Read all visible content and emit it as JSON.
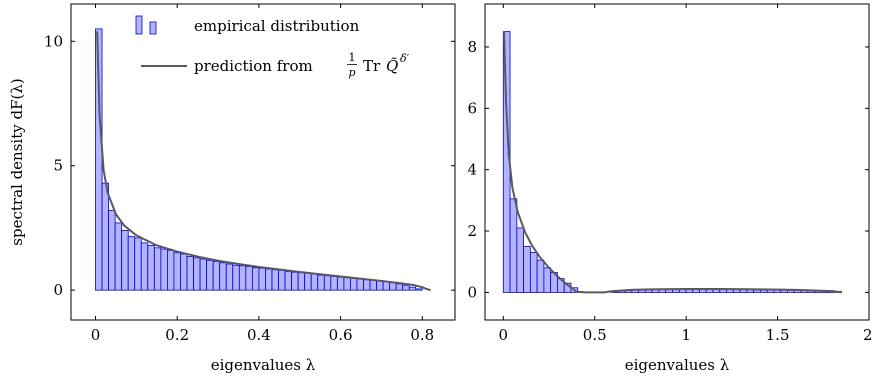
{
  "chart_data": [
    {
      "type": "bar",
      "xlabel": "eigenvalues λ",
      "ylabel": "spectral density dF(λ)",
      "xlim": [
        -0.06,
        0.88
      ],
      "ylim": [
        -1.2,
        11.5
      ],
      "xticks": [
        0,
        0.2,
        0.4,
        0.6,
        0.8
      ],
      "xtick_labels": [
        "0",
        "0.2",
        "0.4",
        "0.6",
        "0.8"
      ],
      "yticks": [
        0,
        5,
        10
      ],
      "ytick_labels": [
        "0",
        "5",
        "10"
      ],
      "legend": {
        "position": "top-right",
        "entries": [
          {
            "label": "empirical distribution",
            "kind": "bar"
          },
          {
            "label_main": "prediction from",
            "label_frac_num": "1",
            "label_frac_den": "p",
            "label_op": "Tr",
            "label_sym": "Q̃",
            "label_sup": "δ′",
            "kind": "line"
          }
        ]
      },
      "bin_width": 0.016,
      "bins_x": [
        0.008,
        0.024,
        0.04,
        0.056,
        0.072,
        0.088,
        0.104,
        0.12,
        0.136,
        0.152,
        0.168,
        0.184,
        0.2,
        0.216,
        0.232,
        0.248,
        0.264,
        0.28,
        0.296,
        0.312,
        0.328,
        0.344,
        0.36,
        0.376,
        0.392,
        0.408,
        0.424,
        0.44,
        0.456,
        0.472,
        0.488,
        0.504,
        0.52,
        0.536,
        0.552,
        0.568,
        0.584,
        0.6,
        0.616,
        0.632,
        0.648,
        0.664,
        0.68,
        0.696,
        0.712,
        0.728,
        0.744,
        0.76,
        0.776,
        0.792
      ],
      "bins_y": [
        10.5,
        4.3,
        3.2,
        2.7,
        2.4,
        2.15,
        2.1,
        1.9,
        1.8,
        1.7,
        1.65,
        1.6,
        1.5,
        1.45,
        1.35,
        1.3,
        1.25,
        1.2,
        1.15,
        1.1,
        1.05,
        1.0,
        0.98,
        0.95,
        0.9,
        0.88,
        0.85,
        0.82,
        0.8,
        0.75,
        0.72,
        0.7,
        0.68,
        0.65,
        0.6,
        0.58,
        0.55,
        0.52,
        0.5,
        0.48,
        0.45,
        0.42,
        0.4,
        0.38,
        0.35,
        0.3,
        0.25,
        0.2,
        0.12,
        0.05
      ],
      "series": [
        {
          "name": "prediction",
          "x": [
            0.004,
            0.01,
            0.02,
            0.03,
            0.05,
            0.07,
            0.1,
            0.15,
            0.2,
            0.25,
            0.3,
            0.35,
            0.4,
            0.45,
            0.5,
            0.55,
            0.6,
            0.65,
            0.7,
            0.75,
            0.78,
            0.8,
            0.81,
            0.82
          ],
          "y": [
            10.4,
            7.0,
            4.8,
            3.9,
            3.05,
            2.6,
            2.2,
            1.8,
            1.55,
            1.35,
            1.18,
            1.05,
            0.93,
            0.83,
            0.73,
            0.64,
            0.55,
            0.46,
            0.37,
            0.27,
            0.2,
            0.12,
            0.05,
            0.0
          ]
        }
      ]
    },
    {
      "type": "bar",
      "xlabel": "eigenvalues λ",
      "ylabel": "",
      "xlim": [
        -0.1,
        2.0
      ],
      "ylim": [
        -0.9,
        9.4
      ],
      "xticks": [
        0,
        0.5,
        1,
        1.5,
        2
      ],
      "xtick_labels": [
        "0",
        "0.5",
        "1",
        "1.5",
        "2"
      ],
      "yticks": [
        0,
        2,
        4,
        6,
        8
      ],
      "ytick_labels": [
        "0",
        "2",
        "4",
        "6",
        "8"
      ],
      "bin_width": 0.037,
      "bins_x": [
        0.0185,
        0.0555,
        0.0925,
        0.1295,
        0.1665,
        0.2035,
        0.2405,
        0.2775,
        0.3145,
        0.3515,
        0.3885,
        0.4255,
        0.4625,
        0.4995,
        0.5365,
        0.5735,
        0.6105,
        0.6475,
        0.6845,
        0.7215,
        0.7585,
        0.7955,
        0.8325,
        0.8695,
        0.9065,
        0.9435,
        0.9805,
        1.0175,
        1.0545,
        1.0915,
        1.1285,
        1.1655,
        1.2025,
        1.2395,
        1.2765,
        1.3135,
        1.3505,
        1.3875,
        1.4245,
        1.4615,
        1.4985,
        1.5355,
        1.5725,
        1.6095,
        1.6465,
        1.6835,
        1.7205,
        1.7575,
        1.7945,
        1.8315
      ],
      "bins_y": [
        8.5,
        3.05,
        2.1,
        1.5,
        1.3,
        1.05,
        0.8,
        0.65,
        0.45,
        0.3,
        0.15,
        0,
        0,
        0,
        0,
        0,
        0.05,
        0.06,
        0.07,
        0.08,
        0.08,
        0.08,
        0.09,
        0.09,
        0.09,
        0.09,
        0.09,
        0.09,
        0.09,
        0.09,
        0.09,
        0.09,
        0.09,
        0.09,
        0.09,
        0.09,
        0.09,
        0.08,
        0.08,
        0.08,
        0.08,
        0.08,
        0.07,
        0.07,
        0.07,
        0.06,
        0.06,
        0.05,
        0.04,
        0.03
      ],
      "series": [
        {
          "name": "prediction",
          "x": [
            0.004,
            0.015,
            0.03,
            0.05,
            0.08,
            0.12,
            0.16,
            0.2,
            0.25,
            0.3,
            0.35,
            0.38,
            0.4,
            0.45,
            0.5,
            0.55,
            0.6,
            0.7,
            0.8,
            1.0,
            1.2,
            1.4,
            1.6,
            1.7,
            1.8,
            1.85
          ],
          "y": [
            8.5,
            6.2,
            4.5,
            3.4,
            2.6,
            1.95,
            1.5,
            1.15,
            0.8,
            0.5,
            0.25,
            0.12,
            0.02,
            0.0,
            0.0,
            0.0,
            0.04,
            0.08,
            0.1,
            0.11,
            0.11,
            0.1,
            0.08,
            0.06,
            0.04,
            0.0
          ]
        }
      ]
    }
  ]
}
